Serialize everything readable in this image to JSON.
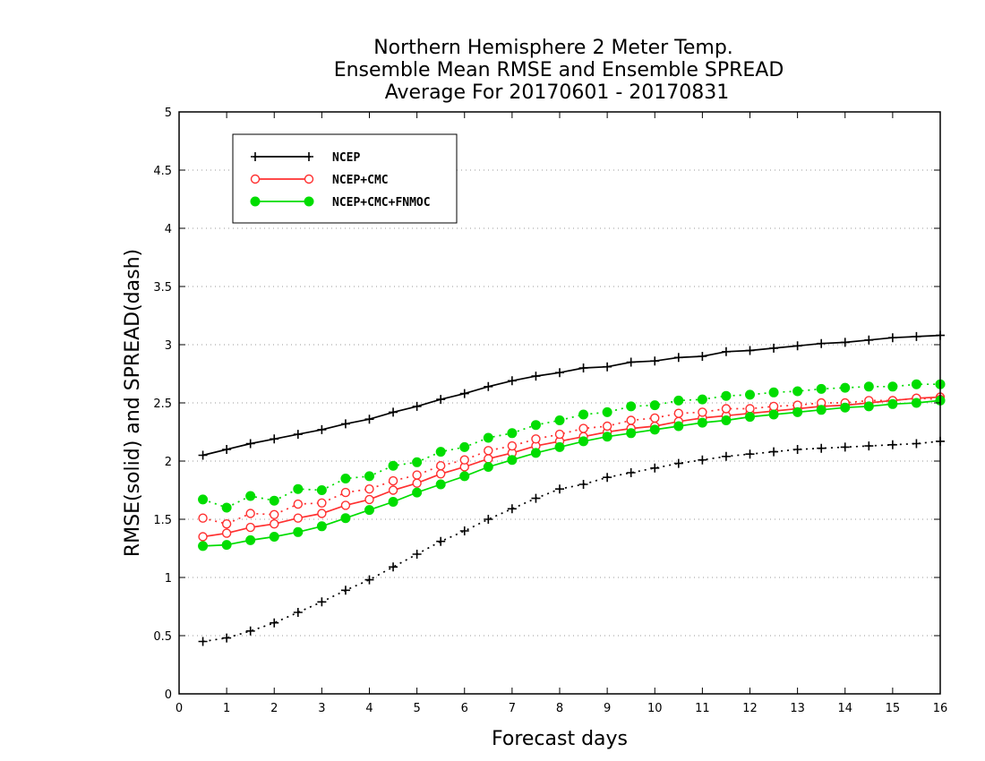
{
  "colors": {
    "NCEP": "#000000",
    "NCEP+CMC": "#ff3030",
    "NCEP+CMC+FNMOC": "#00dd00"
  },
  "chart_data": {
    "type": "line",
    "title": [
      "Northern Hemisphere 2 Meter Temp.",
      "Ensemble Mean RMSE and Ensemble SPREAD",
      "Average For 20170601 - 20170831"
    ],
    "xlabel": "Forecast days",
    "ylabel": "RMSE(solid) and SPREAD(dash)",
    "xlim": [
      0,
      16
    ],
    "ylim": [
      0,
      5
    ],
    "xticks": [
      "0",
      "1",
      "2",
      "3",
      "4",
      "5",
      "6",
      "7",
      "8",
      "9",
      "10",
      "11",
      "12",
      "13",
      "14",
      "15",
      "16"
    ],
    "yticks": [
      "0",
      "0.5",
      "1",
      "1.5",
      "2",
      "2.5",
      "3",
      "3.5",
      "4",
      "4.5",
      "5"
    ],
    "grid": "horizontal dotted",
    "legend_position": "top-left",
    "x": [
      0.5,
      1,
      1.5,
      2,
      2.5,
      3,
      3.5,
      4,
      4.5,
      5,
      5.5,
      6,
      6.5,
      7,
      7.5,
      8,
      8.5,
      9,
      9.5,
      10,
      10.5,
      11,
      11.5,
      12,
      12.5,
      13,
      13.5,
      14,
      14.5,
      15,
      15.5,
      16
    ],
    "series": [
      {
        "name": "NCEP",
        "marker": "plus",
        "rmse": [
          2.05,
          2.1,
          2.15,
          2.19,
          2.23,
          2.27,
          2.32,
          2.36,
          2.42,
          2.47,
          2.53,
          2.58,
          2.64,
          2.69,
          2.73,
          2.76,
          2.8,
          2.81,
          2.85,
          2.86,
          2.89,
          2.9,
          2.94,
          2.95,
          2.97,
          2.99,
          3.01,
          3.02,
          3.04,
          3.06,
          3.07,
          3.08
        ],
        "spread": [
          0.45,
          0.48,
          0.54,
          0.61,
          0.7,
          0.79,
          0.89,
          0.98,
          1.09,
          1.2,
          1.31,
          1.4,
          1.5,
          1.59,
          1.68,
          1.76,
          1.8,
          1.86,
          1.9,
          1.94,
          1.98,
          2.01,
          2.04,
          2.06,
          2.08,
          2.1,
          2.11,
          2.12,
          2.13,
          2.14,
          2.15,
          2.17
        ]
      },
      {
        "name": "NCEP+CMC",
        "marker": "open-circle",
        "rmse": [
          1.35,
          1.38,
          1.43,
          1.46,
          1.51,
          1.55,
          1.62,
          1.67,
          1.75,
          1.81,
          1.89,
          1.95,
          2.02,
          2.07,
          2.13,
          2.17,
          2.21,
          2.25,
          2.28,
          2.3,
          2.34,
          2.37,
          2.39,
          2.41,
          2.43,
          2.45,
          2.47,
          2.48,
          2.5,
          2.52,
          2.54,
          2.55
        ],
        "spread": [
          1.51,
          1.46,
          1.55,
          1.54,
          1.63,
          1.64,
          1.73,
          1.76,
          1.83,
          1.88,
          1.96,
          2.01,
          2.09,
          2.13,
          2.19,
          2.23,
          2.28,
          2.3,
          2.35,
          2.37,
          2.41,
          2.42,
          2.45,
          2.45,
          2.47,
          2.48,
          2.5,
          2.5,
          2.52,
          2.52,
          2.54,
          2.53
        ]
      },
      {
        "name": "NCEP+CMC+FNMOC",
        "marker": "filled-circle",
        "rmse": [
          1.27,
          1.28,
          1.32,
          1.35,
          1.39,
          1.44,
          1.51,
          1.58,
          1.65,
          1.73,
          1.8,
          1.87,
          1.95,
          2.01,
          2.07,
          2.12,
          2.17,
          2.21,
          2.24,
          2.27,
          2.3,
          2.33,
          2.35,
          2.38,
          2.4,
          2.42,
          2.44,
          2.46,
          2.47,
          2.49,
          2.5,
          2.52
        ],
        "spread": [
          1.67,
          1.6,
          1.7,
          1.66,
          1.76,
          1.75,
          1.85,
          1.87,
          1.96,
          1.99,
          2.08,
          2.12,
          2.2,
          2.24,
          2.31,
          2.35,
          2.4,
          2.42,
          2.47,
          2.48,
          2.52,
          2.53,
          2.56,
          2.57,
          2.59,
          2.6,
          2.62,
          2.63,
          2.64,
          2.64,
          2.66,
          2.66
        ]
      }
    ]
  }
}
